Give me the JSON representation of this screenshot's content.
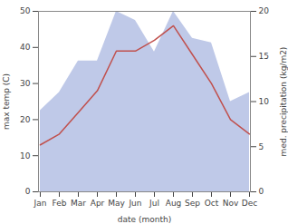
{
  "chart_data": {
    "type": "line",
    "xlabel": "date (month)",
    "ylabel": "max temp (C)",
    "y2label": "med. precipitation (kg/m2)",
    "categories": [
      "Jan",
      "Feb",
      "Mar",
      "Apr",
      "May",
      "Jun",
      "Jul",
      "Aug",
      "Sep",
      "Oct",
      "Nov",
      "Dec"
    ],
    "series": [
      {
        "type": "area",
        "axis": "y2",
        "color": "#bfc9e8",
        "values": [
          9,
          11,
          14.5,
          14.5,
          20,
          19,
          15.5,
          20,
          17,
          16.5,
          10,
          11
        ]
      },
      {
        "type": "line",
        "color": "#c0504d",
        "values": [
          13,
          16,
          22,
          28,
          39,
          39,
          42,
          46,
          38,
          30,
          20,
          16
        ]
      }
    ],
    "ylim": [
      0,
      50
    ],
    "yticks": [
      0,
      10,
      20,
      30,
      40,
      50
    ],
    "y2lim": [
      0,
      20
    ],
    "y2ticks": [
      0,
      5,
      10,
      15,
      20
    ],
    "grid": false
  }
}
